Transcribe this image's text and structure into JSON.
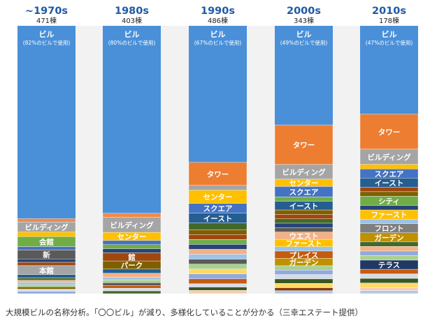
{
  "chart_data": {
    "type": "bar",
    "subtype": "stacked-100",
    "title": "",
    "xlabel": "",
    "ylabel": "",
    "ylim": [
      0,
      100
    ],
    "categories": [
      "~1970s",
      "1980s",
      "1990s",
      "2000s",
      "2010s"
    ],
    "counts": [
      "471棟",
      "403棟",
      "486棟",
      "343棟",
      "178棟"
    ],
    "main_series": {
      "name": "ビル",
      "labels": [
        "(82%のビルで使用)",
        "(80%のビルで使用)",
        "(67%のビルで使用)",
        "(49%のビルで使用)",
        "(47%のビルで使用)"
      ],
      "values": [
        72,
        70,
        51,
        37,
        33
      ]
    },
    "segments": [
      [
        {
          "name": "",
          "value": 1.5,
          "color": "#f08a4b"
        },
        {
          "name": "ビルディング",
          "value": 4.5,
          "color": "#a5a5a5"
        },
        {
          "name": "",
          "value": 2,
          "color": "#ffc000"
        },
        {
          "name": "会館",
          "value": 4.5,
          "color": "#70ad47"
        },
        {
          "name": "",
          "value": 1.5,
          "color": "#4472c4"
        },
        {
          "name": "新",
          "value": 4,
          "color": "#5a5a5a"
        },
        {
          "name": "",
          "value": 1.5,
          "color": "#264478"
        },
        {
          "name": "",
          "value": 1.5,
          "color": "#9e480e"
        },
        {
          "name": "本館",
          "value": 4,
          "color": "#a5a5a5"
        },
        {
          "name": "",
          "value": 1.5,
          "color": "#255e91"
        },
        {
          "name": "",
          "value": 1,
          "color": "#43682b"
        },
        {
          "name": "",
          "value": 1,
          "color": "#f4b183"
        },
        {
          "name": "",
          "value": 1,
          "color": "#9dc3e6"
        },
        {
          "name": "",
          "value": 1,
          "color": "#a9d18e"
        },
        {
          "name": "",
          "value": 1,
          "color": "#7f6000"
        },
        {
          "name": "",
          "value": 1,
          "color": "#d6dce5"
        },
        {
          "name": "",
          "value": 1,
          "color": "#8faadc"
        }
      ],
      [
        {
          "name": "",
          "value": 1.5,
          "color": "#f08a4b"
        },
        {
          "name": "ビルディング",
          "value": 5.5,
          "color": "#a5a5a5"
        },
        {
          "name": "センター",
          "value": 3,
          "color": "#ffc000"
        },
        {
          "name": "",
          "value": 1.5,
          "color": "#4472c4"
        },
        {
          "name": "",
          "value": 1.5,
          "color": "#70ad47"
        },
        {
          "name": "",
          "value": 1.5,
          "color": "#264478"
        },
        {
          "name": "館",
          "value": 3,
          "color": "#9e480e"
        },
        {
          "name": "パーク",
          "value": 3,
          "color": "#7f6000"
        },
        {
          "name": "",
          "value": 1.5,
          "color": "#255e91"
        },
        {
          "name": "",
          "value": 1.5,
          "color": "#f4b183"
        },
        {
          "name": "",
          "value": 1,
          "color": "#9dc3e6"
        },
        {
          "name": "",
          "value": 1,
          "color": "#a9d18e"
        },
        {
          "name": "",
          "value": 1,
          "color": "#5a5a5a"
        },
        {
          "name": "",
          "value": 1,
          "color": "#c55a11"
        },
        {
          "name": "",
          "value": 1,
          "color": "#d6dce5"
        },
        {
          "name": "",
          "value": 1,
          "color": "#43682b"
        }
      ],
      [
        {
          "name": "タワー",
          "value": 7,
          "color": "#ed7d31"
        },
        {
          "name": "",
          "value": 1.5,
          "color": "#a5a5a5"
        },
        {
          "name": "センター",
          "value": 4,
          "color": "#ffc000"
        },
        {
          "name": "スクエア",
          "value": 3,
          "color": "#4472c4"
        },
        {
          "name": "イースト",
          "value": 3,
          "color": "#255e91"
        },
        {
          "name": "",
          "value": 2,
          "color": "#43682b"
        },
        {
          "name": "",
          "value": 1.5,
          "color": "#7f6000"
        },
        {
          "name": "",
          "value": 1.5,
          "color": "#9e480e"
        },
        {
          "name": "",
          "value": 1.5,
          "color": "#70ad47"
        },
        {
          "name": "",
          "value": 1.5,
          "color": "#264478"
        },
        {
          "name": "",
          "value": 1.5,
          "color": "#f4b183"
        },
        {
          "name": "",
          "value": 1.5,
          "color": "#9dc3e6"
        },
        {
          "name": "",
          "value": 1.5,
          "color": "#5a5a5a"
        },
        {
          "name": "",
          "value": 1.5,
          "color": "#a9d18e"
        },
        {
          "name": "",
          "value": 1.5,
          "color": "#ffd966"
        },
        {
          "name": "",
          "value": 1.5,
          "color": "#8faadc"
        },
        {
          "name": "",
          "value": 1.5,
          "color": "#c55a11"
        },
        {
          "name": "",
          "value": 1,
          "color": "#d6dce5"
        },
        {
          "name": "",
          "value": 1,
          "color": "#375623"
        },
        {
          "name": "",
          "value": 1,
          "color": "#f8cbad"
        }
      ],
      [
        {
          "name": "タワー",
          "value": 13.5,
          "color": "#ed7d31"
        },
        {
          "name": "ビルディング",
          "value": 5,
          "color": "#a5a5a5"
        },
        {
          "name": "センター",
          "value": 2.5,
          "color": "#ffc000"
        },
        {
          "name": "スクエア",
          "value": 3.5,
          "color": "#4472c4"
        },
        {
          "name": "",
          "value": 1.5,
          "color": "#70ad47"
        },
        {
          "name": "イースト",
          "value": 3,
          "color": "#255e91"
        },
        {
          "name": "",
          "value": 1.5,
          "color": "#7f6000"
        },
        {
          "name": "",
          "value": 1.5,
          "color": "#9e480e"
        },
        {
          "name": "",
          "value": 1.5,
          "color": "#43682b"
        },
        {
          "name": "",
          "value": 1.5,
          "color": "#264478"
        },
        {
          "name": "",
          "value": 1.5,
          "color": "#5a5a5a"
        },
        {
          "name": "ウエスト",
          "value": 2.5,
          "color": "#f4b183"
        },
        {
          "name": "ファースト",
          "value": 2.5,
          "color": "#ffc000"
        },
        {
          "name": "",
          "value": 1.5,
          "color": "#9dc3e6"
        },
        {
          "name": "プレイス",
          "value": 2.5,
          "color": "#c55a11"
        },
        {
          "name": "ガーデン",
          "value": 2.5,
          "color": "#bf9000"
        },
        {
          "name": "",
          "value": 1.5,
          "color": "#a9d18e"
        },
        {
          "name": "",
          "value": 1.5,
          "color": "#8faadc"
        },
        {
          "name": "",
          "value": 1.5,
          "color": "#d6dce5"
        },
        {
          "name": "",
          "value": 1.5,
          "color": "#375623"
        },
        {
          "name": "",
          "value": 1.5,
          "color": "#ffd966"
        },
        {
          "name": "",
          "value": 1,
          "color": "#843c0c"
        },
        {
          "name": "",
          "value": 1,
          "color": "#b4c7e7"
        }
      ],
      [
        {
          "name": "タワー",
          "value": 11.5,
          "color": "#ed7d31"
        },
        {
          "name": "ビルディング",
          "value": 5,
          "color": "#a5a5a5"
        },
        {
          "name": "",
          "value": 1.5,
          "color": "#ffc000"
        },
        {
          "name": "スクエア",
          "value": 3,
          "color": "#4472c4"
        },
        {
          "name": "イースト",
          "value": 3,
          "color": "#255e91"
        },
        {
          "name": "",
          "value": 1.5,
          "color": "#9e480e"
        },
        {
          "name": "",
          "value": 1.5,
          "color": "#7f6000"
        },
        {
          "name": "シティ",
          "value": 3,
          "color": "#70ad47"
        },
        {
          "name": "",
          "value": 1.5,
          "color": "#264478"
        },
        {
          "name": "ファースト",
          "value": 3,
          "color": "#ffc000"
        },
        {
          "name": "",
          "value": 1.5,
          "color": "#9dc3e6"
        },
        {
          "name": "フロント",
          "value": 3,
          "color": "#7f7f7f"
        },
        {
          "name": "ガーデン",
          "value": 3,
          "color": "#bf9000"
        },
        {
          "name": "",
          "value": 1.5,
          "color": "#43682b"
        },
        {
          "name": "",
          "value": 1.5,
          "color": "#f4b183"
        },
        {
          "name": "",
          "value": 1.5,
          "color": "#8faadc"
        },
        {
          "name": "",
          "value": 1.5,
          "color": "#a9d18e"
        },
        {
          "name": "テラス",
          "value": 3,
          "color": "#1f3864"
        },
        {
          "name": "",
          "value": 1.5,
          "color": "#c55a11"
        },
        {
          "name": "",
          "value": 1.5,
          "color": "#d6dce5"
        },
        {
          "name": "",
          "value": 1.5,
          "color": "#375623"
        },
        {
          "name": "",
          "value": 1.5,
          "color": "#ffd966"
        },
        {
          "name": "",
          "value": 1,
          "color": "#f8cbad"
        },
        {
          "name": "",
          "value": 1,
          "color": "#b4c7e7"
        }
      ]
    ]
  },
  "colors": {
    "main_bar": "#4a90d9",
    "gap_background": "#f2f2f2",
    "title_text": "#1f5aa6",
    "segment_label": "#ffffff"
  },
  "caption": "大規模ビルの名称分析。「〇〇ビル」が減り、多様化していることが分かる（三幸エステート提供）"
}
